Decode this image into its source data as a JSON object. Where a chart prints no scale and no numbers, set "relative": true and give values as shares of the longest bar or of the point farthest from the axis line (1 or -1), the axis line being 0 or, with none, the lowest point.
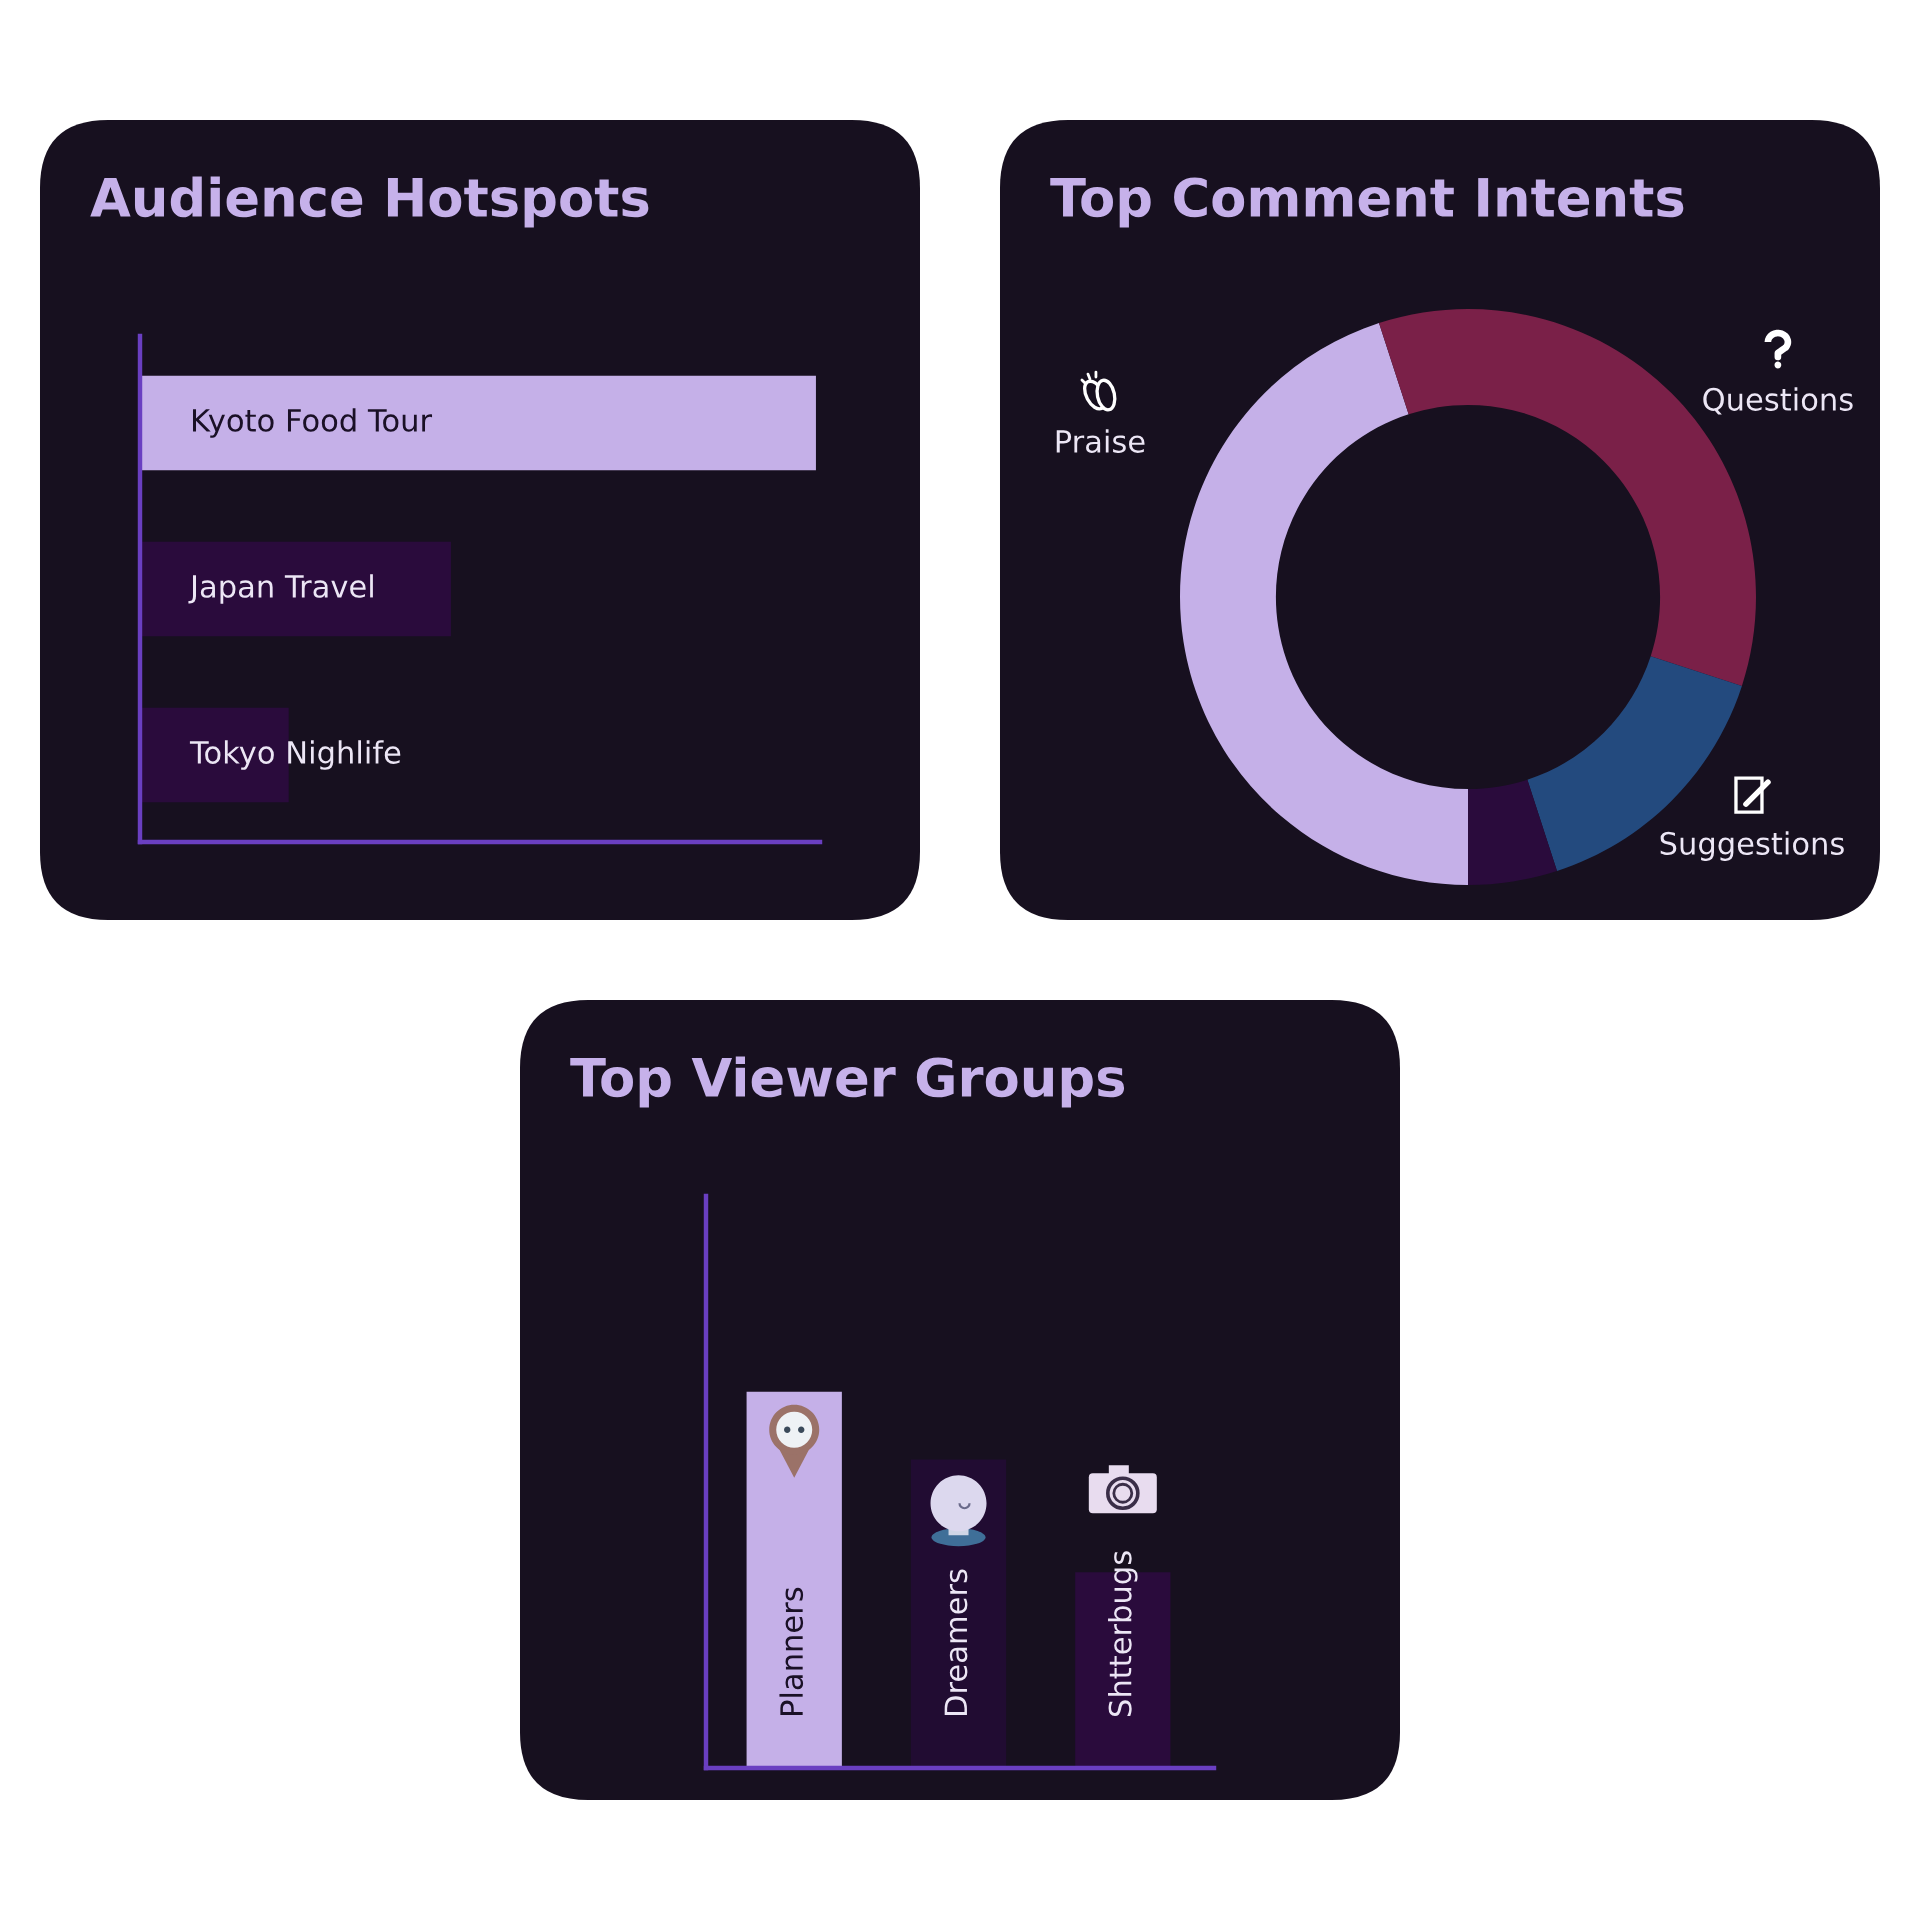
{
  "chart_data": [
    {
      "type": "bar",
      "title": "Audience Hotspots",
      "orientation": "horizontal",
      "relative": true,
      "categories": [
        "Kyoto Food Tour",
        "Japan Travel",
        "Tokyo Nighlife"
      ],
      "values": [
        1,
        0.46,
        0.22
      ],
      "colors": [
        "#c5b0e8",
        "#2a0b3c",
        "#2a0b3c"
      ]
    },
    {
      "type": "donut",
      "title": "Top Comment Intents",
      "categories": [
        "Praise",
        "Questions",
        "Suggestions",
        null
      ],
      "values": [
        45,
        35,
        15,
        5
      ],
      "colors": [
        "#c5b0e8",
        "#7a2048",
        "#234a7e",
        "#2a0b3c"
      ]
    },
    {
      "type": "bar",
      "title": "Top Viewer Groups",
      "relative": true,
      "categories": [
        "Planners",
        "Dreamers",
        "Shtterbugs"
      ],
      "values": [
        1,
        0.82,
        0.52
      ],
      "colors": [
        "#c5b0e8",
        "#210c32",
        "#2a0b3c"
      ]
    }
  ]
}
